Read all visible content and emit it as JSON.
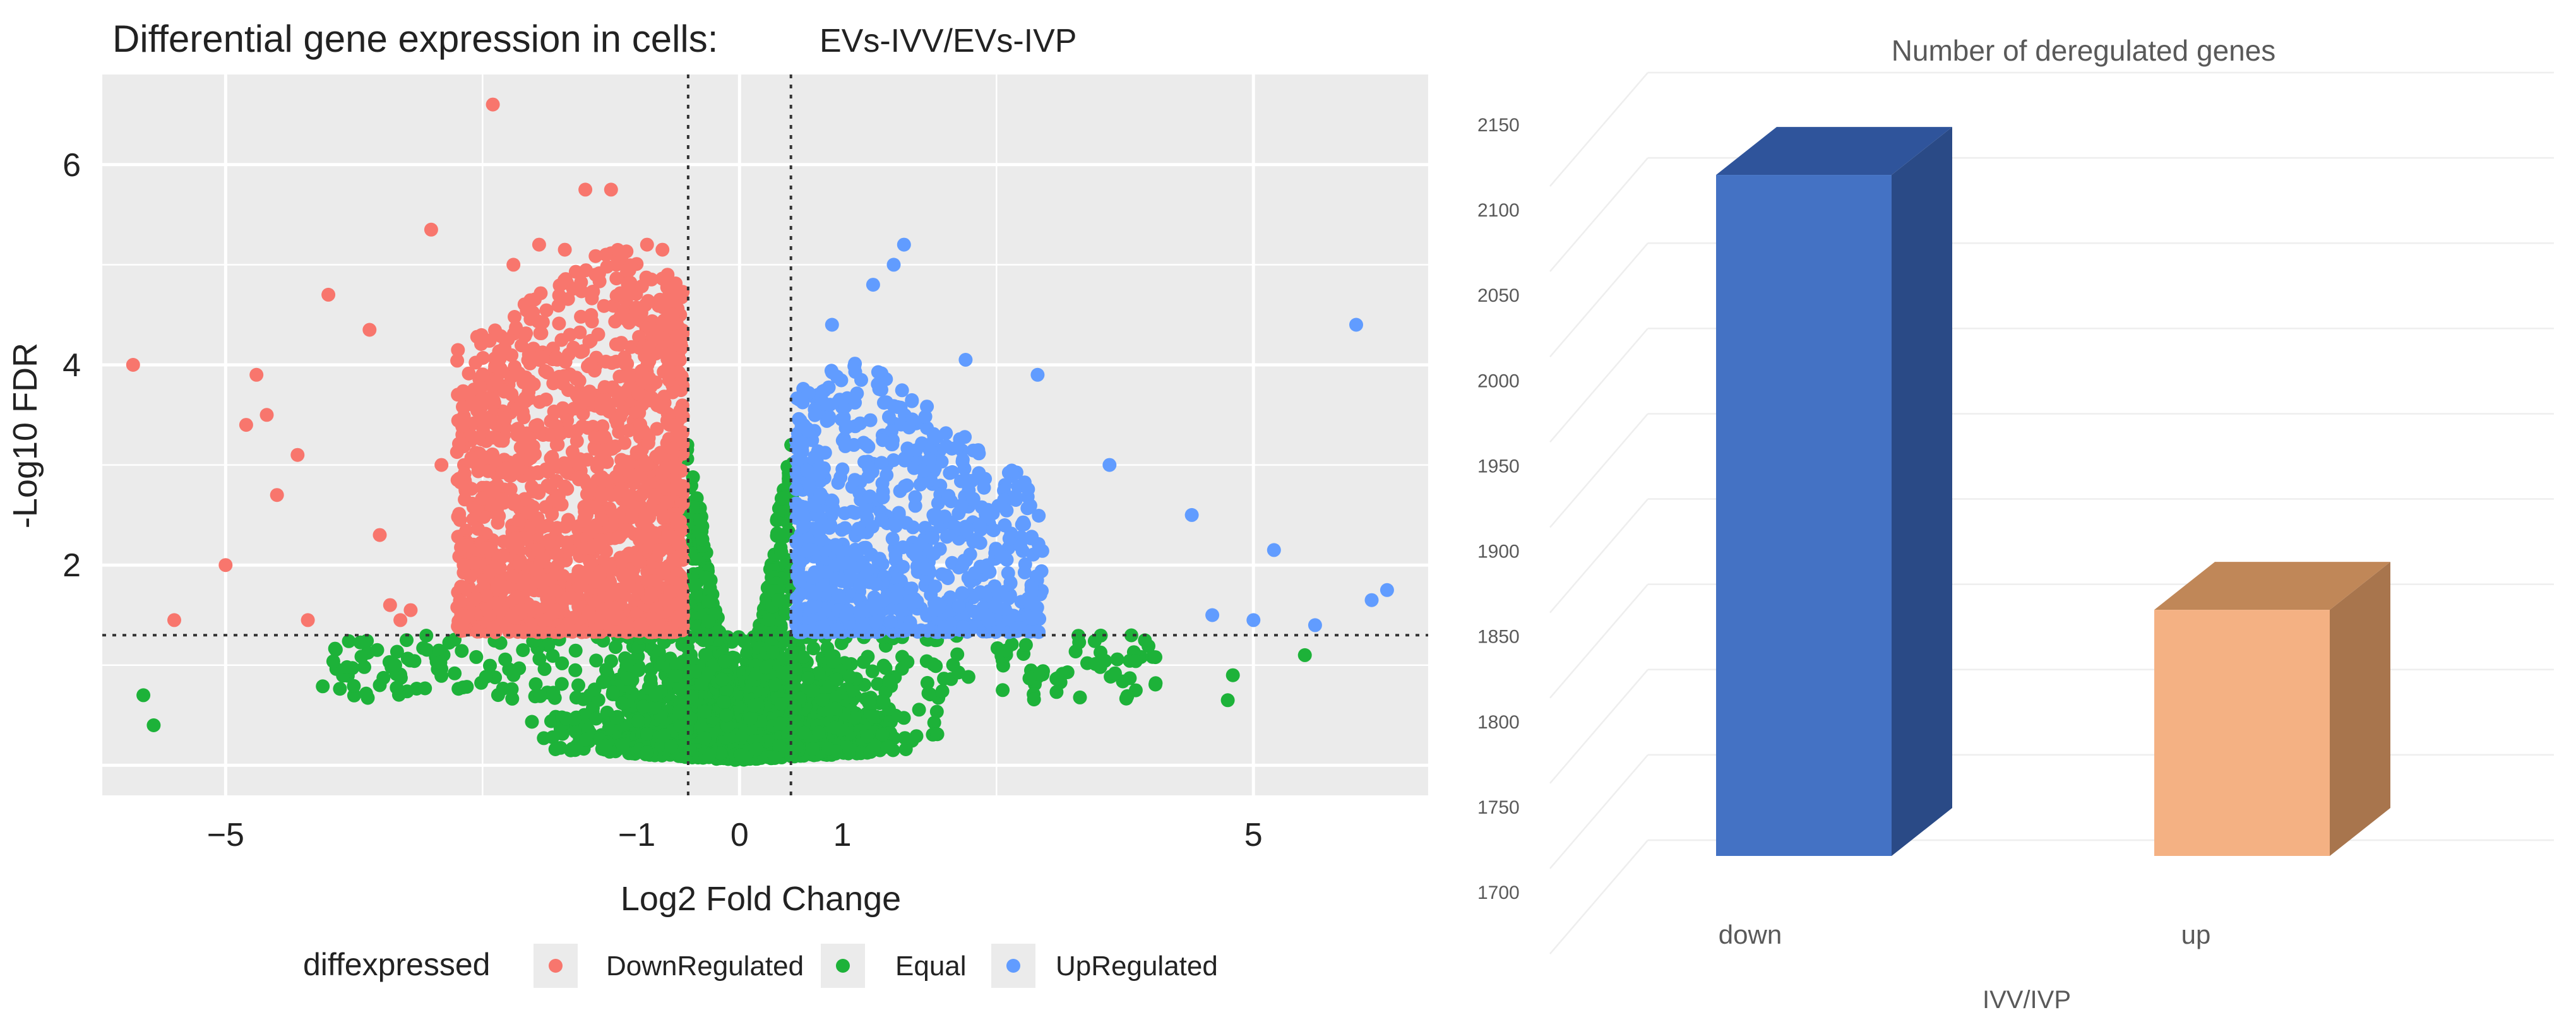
{
  "colors": {
    "panel_bg": "#ebebeb",
    "grid": "#ffffff",
    "down": "#f8766d",
    "equal": "#1db239",
    "up": "#619cff",
    "bar_down_front": "#4472c4",
    "bar_down_side": "#2a4a86",
    "bar_down_top": "#2f549b",
    "bar_up_front": "#f4b183",
    "bar_up_side": "#a8754d",
    "bar_up_top": "#c08758"
  },
  "chart_data": [
    {
      "type": "scatter",
      "title": "Differential gene expression in cells:",
      "subtitle": "EVs-IVV/EVs-IVP",
      "xlabel": "Log2 Fold Change",
      "ylabel": "-Log10  FDR",
      "xlim": [
        -6.2,
        6.7
      ],
      "ylim": [
        -0.3,
        6.9
      ],
      "x_ticks": [
        -5,
        -1,
        0,
        1,
        5
      ],
      "x_tick_labels": [
        "−5",
        "−1",
        "0",
        "1",
        "5"
      ],
      "y_ticks": [
        2,
        4,
        6
      ],
      "y_tick_labels": [
        "2",
        "4",
        "6"
      ],
      "fc_threshold": 0.5,
      "fdr_threshold": 1.3,
      "legend": {
        "title": "diffexpressed",
        "position": "bottom",
        "entries": [
          "DownRegulated",
          "Equal",
          "UpRegulated"
        ]
      },
      "series": [
        {
          "name": "DownRegulated",
          "sample_points": [
            [
              -5.9,
              4.0
            ],
            [
              -5.5,
              1.45
            ],
            [
              -5.0,
              2.0
            ],
            [
              -4.8,
              3.4
            ],
            [
              -4.7,
              3.9
            ],
            [
              -4.6,
              3.5
            ],
            [
              -4.5,
              2.7
            ],
            [
              -4.3,
              3.1
            ],
            [
              -4.2,
              1.45
            ],
            [
              -4.0,
              4.7
            ],
            [
              -3.6,
              4.35
            ],
            [
              -3.5,
              2.3
            ],
            [
              -3.4,
              1.6
            ],
            [
              -3.3,
              1.45
            ],
            [
              -3.2,
              1.55
            ],
            [
              -3.0,
              5.35
            ],
            [
              -2.9,
              3.0
            ],
            [
              -2.7,
              1.4
            ],
            [
              -2.4,
              6.6
            ],
            [
              -2.2,
              5.0
            ],
            [
              -1.95,
              5.2
            ],
            [
              -1.7,
              5.15
            ],
            [
              -1.65,
              4.3
            ],
            [
              -1.5,
              5.75
            ],
            [
              -1.4,
              4.9
            ],
            [
              -1.3,
              5.1
            ],
            [
              -1.25,
              5.75
            ],
            [
              -1.2,
              5.0
            ],
            [
              -0.9,
              5.2
            ],
            [
              -0.75,
              5.15
            ],
            [
              -0.7,
              4.9
            ]
          ]
        },
        {
          "name": "Equal",
          "sample_points": [
            [
              -5.8,
              0.7
            ],
            [
              -5.7,
              0.4
            ],
            [
              -3.5,
              0.8
            ],
            [
              -3.35,
              1.0
            ],
            [
              4.75,
              0.65
            ],
            [
              4.8,
              0.9
            ],
            [
              5.5,
              1.1
            ]
          ]
        },
        {
          "name": "UpRegulated",
          "sample_points": [
            [
              0.9,
              4.4
            ],
            [
              1.3,
              4.8
            ],
            [
              1.5,
              5.0
            ],
            [
              1.6,
              5.2
            ],
            [
              2.2,
              4.05
            ],
            [
              2.9,
              3.9
            ],
            [
              3.6,
              3.0
            ],
            [
              4.4,
              2.5
            ],
            [
              4.6,
              1.5
            ],
            [
              5.0,
              1.45
            ],
            [
              5.2,
              2.15
            ],
            [
              5.6,
              1.4
            ],
            [
              6.0,
              4.4
            ],
            [
              6.15,
              1.65
            ],
            [
              6.3,
              1.75
            ]
          ]
        }
      ]
    },
    {
      "type": "bar",
      "title": "Number of deregulated genes",
      "xlabel": "IVV/IVP",
      "ylabel": "",
      "categories": [
        "down",
        "up"
      ],
      "values": [
        2120,
        1865
      ],
      "ylim": [
        1700,
        2150
      ],
      "y_ticks": [
        1700,
        1750,
        1800,
        1850,
        1900,
        1950,
        2000,
        2050,
        2100,
        2150
      ],
      "y_tick_labels": [
        "1700",
        "1750",
        "1800",
        "1850",
        "1900",
        "1950",
        "2000",
        "2050",
        "2100",
        "2150"
      ],
      "style": "3d"
    }
  ]
}
